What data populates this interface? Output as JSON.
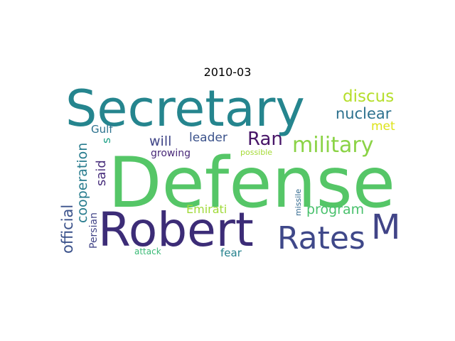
{
  "chart_data": {
    "type": "wordcloud",
    "title": "2010-03",
    "words": [
      {
        "text": "Defense",
        "weight": 100,
        "color": "#55c667"
      },
      {
        "text": "Secretary",
        "weight": 78,
        "color": "#25858e"
      },
      {
        "text": "Robert",
        "weight": 72,
        "color": "#3c2c77"
      },
      {
        "text": "M",
        "weight": 45,
        "color": "#414487"
      },
      {
        "text": "Rates",
        "weight": 38,
        "color": "#3f4889"
      },
      {
        "text": "military",
        "weight": 26,
        "color": "#8bd346"
      },
      {
        "text": "Ran",
        "weight": 22,
        "color": "#481668"
      },
      {
        "text": "discus",
        "weight": 19,
        "color": "#b5de2b"
      },
      {
        "text": "nuclear",
        "weight": 18,
        "color": "#2d718e"
      },
      {
        "text": "program",
        "weight": 17,
        "color": "#4ac16d"
      },
      {
        "text": "official",
        "weight": 17,
        "color": "#3b528b"
      },
      {
        "text": "cooperation",
        "weight": 16,
        "color": "#287c8e"
      },
      {
        "text": "said",
        "weight": 15,
        "color": "#472d7b"
      },
      {
        "text": "will",
        "weight": 15,
        "color": "#404688"
      },
      {
        "text": "leader",
        "weight": 14,
        "color": "#3b528b"
      },
      {
        "text": "Emirati",
        "weight": 14,
        "color": "#a0da39"
      },
      {
        "text": "met",
        "weight": 14,
        "color": "#dde318"
      },
      {
        "text": "growing",
        "weight": 13,
        "color": "#482878"
      },
      {
        "text": "Gulf",
        "weight": 13,
        "color": "#2c728e"
      },
      {
        "text": "fear",
        "weight": 13,
        "color": "#26828e"
      },
      {
        "text": "Persian",
        "weight": 12,
        "color": "#414487"
      },
      {
        "text": "s",
        "weight": 14,
        "color": "#1fa187"
      },
      {
        "text": "attack",
        "weight": 11,
        "color": "#3aba76"
      },
      {
        "text": "missile",
        "weight": 10,
        "color": "#31688e"
      },
      {
        "text": "possible",
        "weight": 10,
        "color": "#a5db36"
      }
    ]
  }
}
